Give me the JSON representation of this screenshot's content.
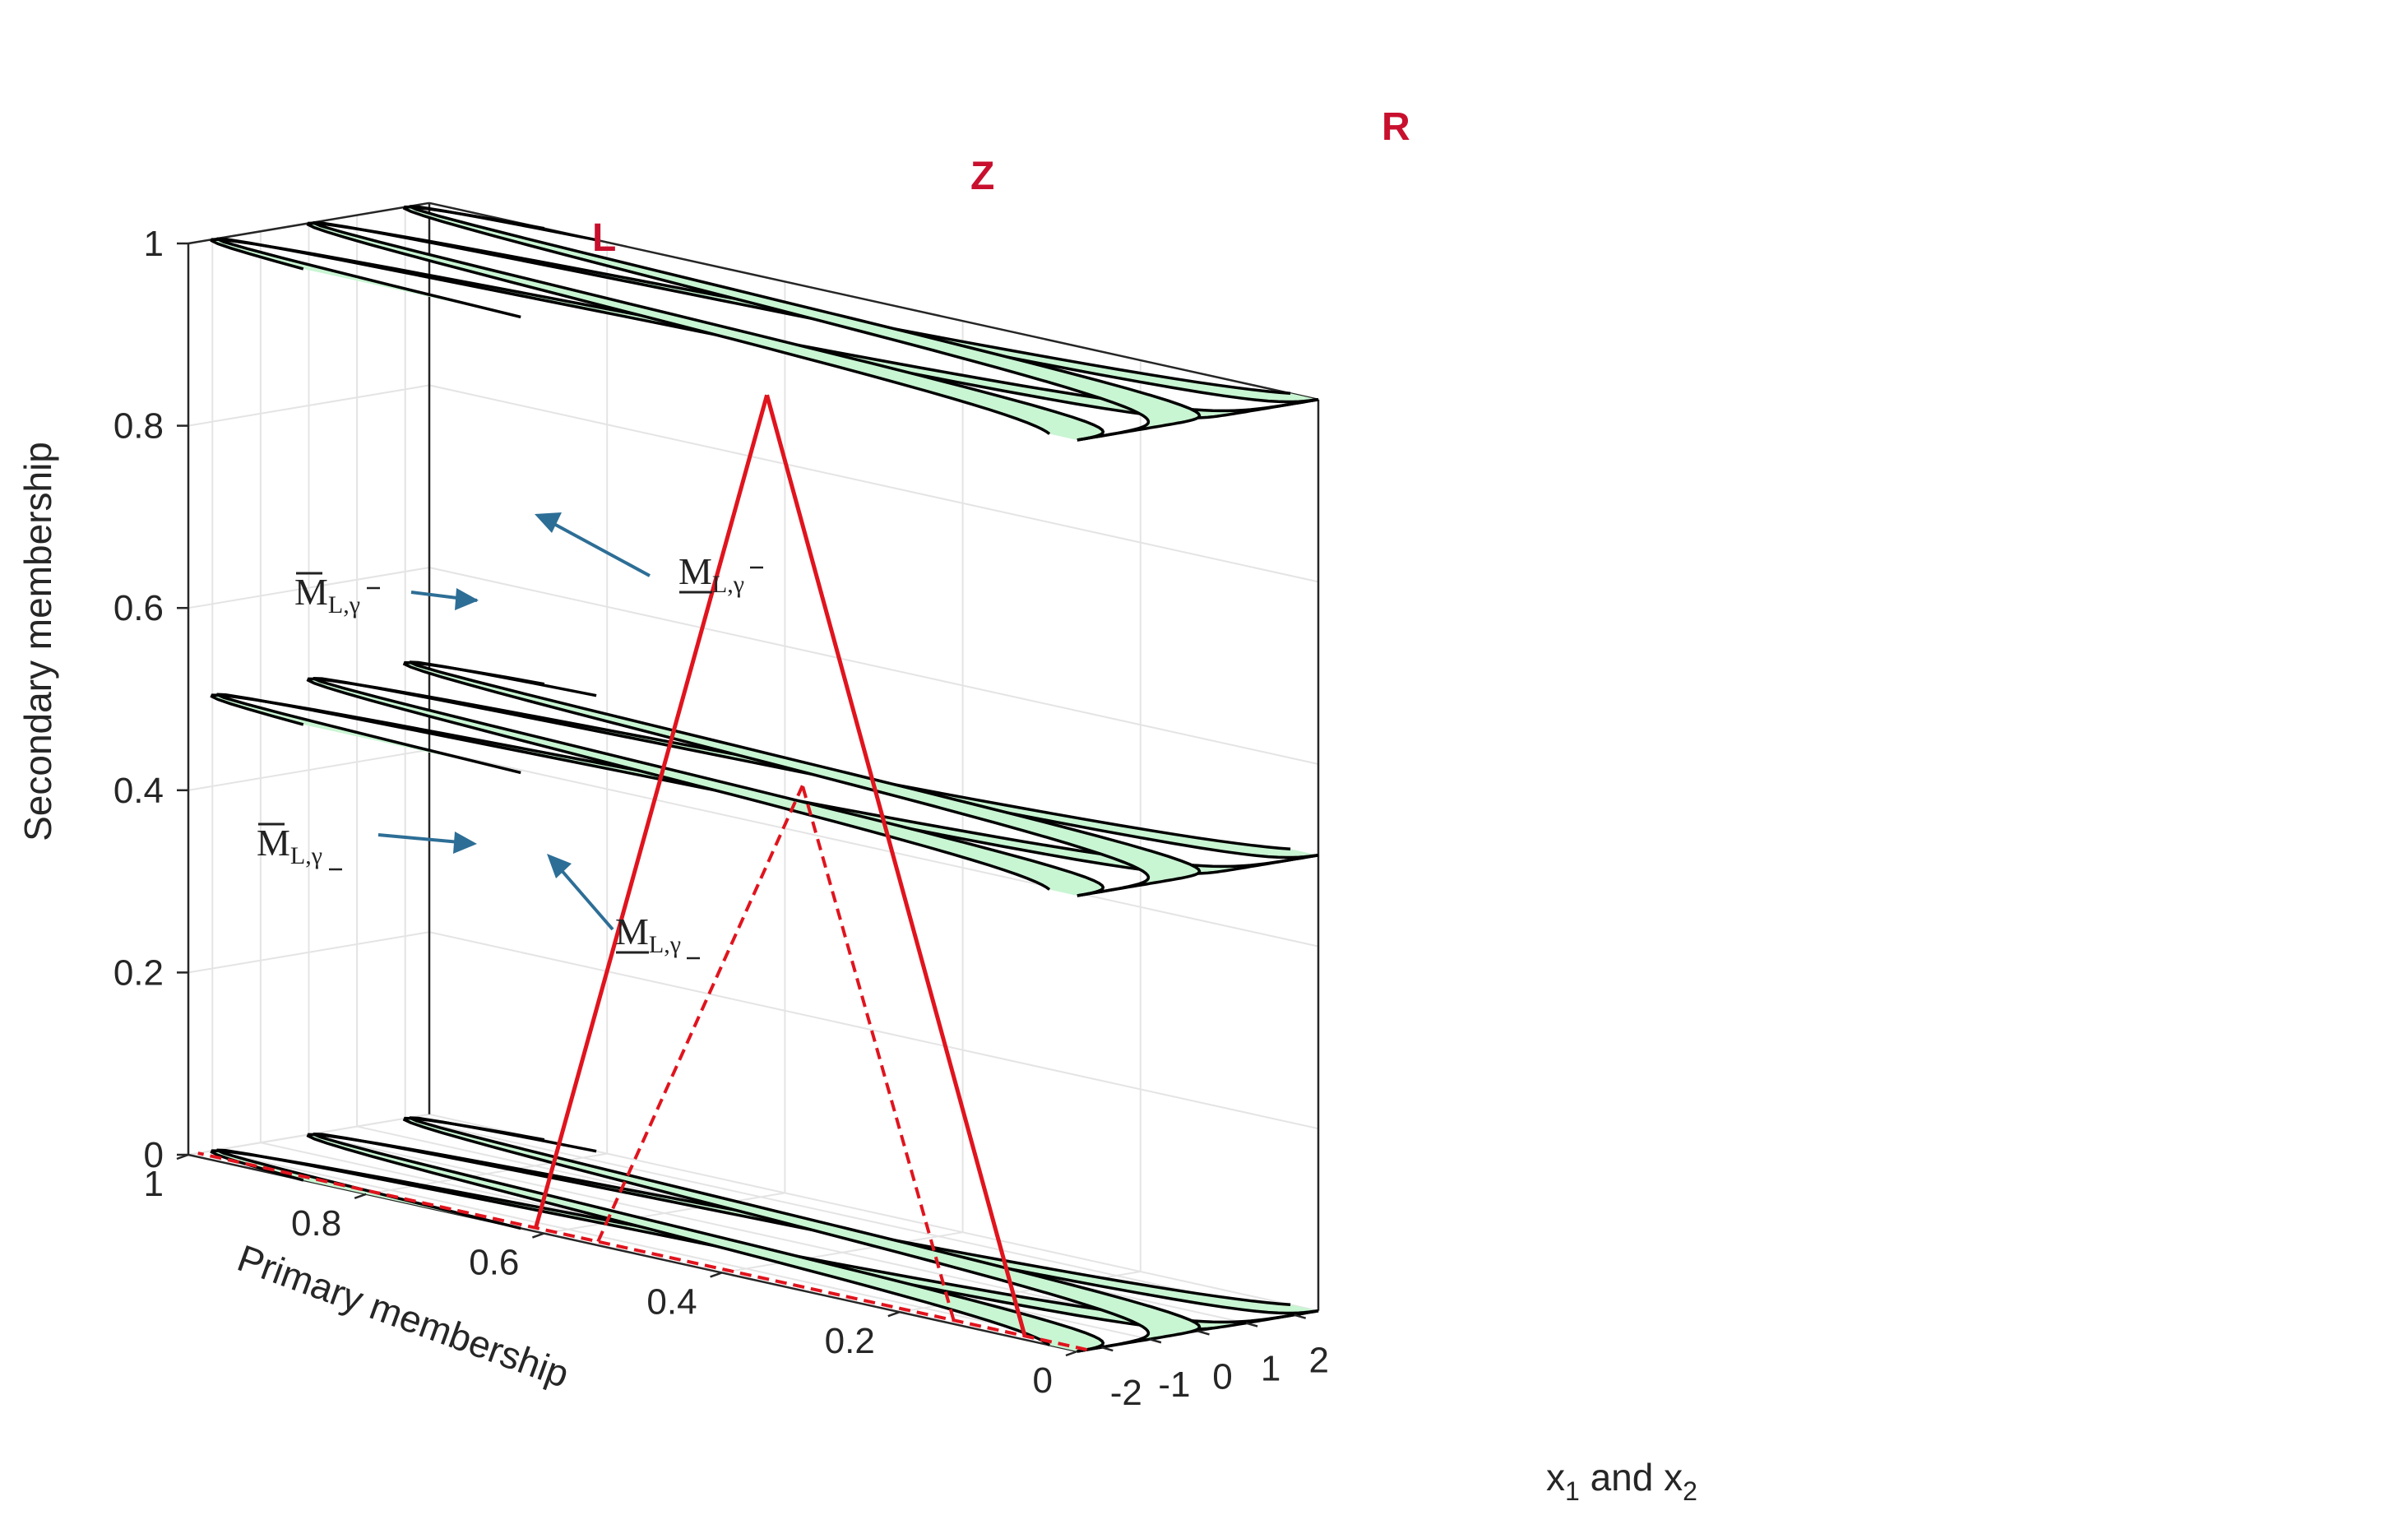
{
  "chart_data": {
    "type": "surface-3d",
    "zlabel": "Secondary membership",
    "ylabel": "Primary membership",
    "xlabel_main": "x",
    "xlabel_sub1": "1",
    "xlabel_mid": " and x",
    "xlabel_sub2": "2",
    "x_ticks": [
      "-2",
      "-1",
      "0",
      "1",
      "2"
    ],
    "y_ticks": [
      "0",
      "0.2",
      "0.4",
      "0.6",
      "0.8",
      "1"
    ],
    "z_ticks": [
      "0",
      "0.2",
      "0.4",
      "0.6",
      "0.8",
      "1"
    ],
    "xlim": [
      -2.5,
      2.5
    ],
    "ylim": [
      0,
      1
    ],
    "zlim": [
      0,
      1
    ],
    "grid": true,
    "sets": [
      {
        "name": "L",
        "center": -2
      },
      {
        "name": "Z",
        "center": 0
      },
      {
        "name": "R",
        "center": 2
      }
    ],
    "slice_levels": [
      0,
      0.5,
      1
    ],
    "fill_color": "#c8f5d2",
    "outline_color": "#000000",
    "highlight_color": "#e0141e",
    "annotation_color": "#2d6e96",
    "annotations": [
      {
        "base": "M",
        "bar": "over",
        "sub": "L,",
        "sub_greek": "γ",
        "sub_bar": "over"
      },
      {
        "base": "M",
        "bar": "under",
        "sub": "L,",
        "sub_greek": "γ",
        "sub_bar": "over"
      },
      {
        "base": "M",
        "bar": "over",
        "sub": "L,",
        "sub_greek": "γ",
        "sub_bar": "under"
      },
      {
        "base": "M",
        "bar": "under",
        "sub": "L,",
        "sub_greek": "γ",
        "sub_bar": "under"
      }
    ]
  }
}
